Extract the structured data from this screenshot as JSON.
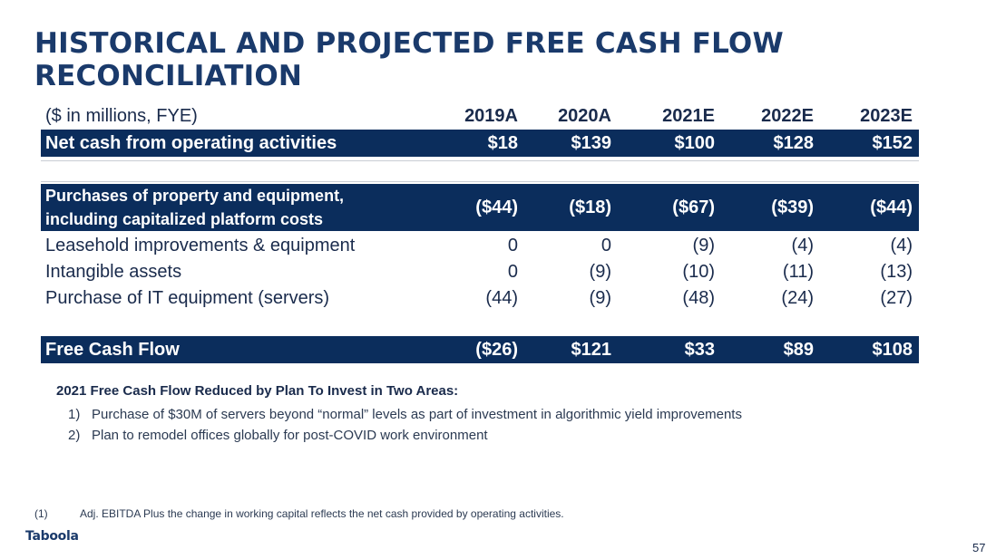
{
  "title": {
    "line1": "HISTORICAL AND PROJECTED FREE CASH FLOW",
    "line2": "RECONCILIATION"
  },
  "table": {
    "units_label": "($ in millions, FYE)",
    "columns": [
      "2019A",
      "2020A",
      "2021E",
      "2022E",
      "2023E"
    ],
    "rows": [
      {
        "label": "Net cash from operating activities",
        "values": [
          "$18",
          "$139",
          "$100",
          "$128",
          "$152"
        ]
      },
      {
        "label": "Purchases of property and equipment, including capitalized platform costs",
        "values": [
          "($44)",
          "($18)",
          "($67)",
          "($39)",
          "($44)"
        ]
      },
      {
        "label": "Leasehold improvements & equipment",
        "values": [
          "0",
          "0",
          "(9)",
          "(4)",
          "(4)"
        ]
      },
      {
        "label": "Intangible assets",
        "values": [
          "0",
          "(9)",
          "(10)",
          "(11)",
          "(13)"
        ]
      },
      {
        "label": "Purchase of IT equipment (servers)",
        "values": [
          "(44)",
          "(9)",
          "(48)",
          "(24)",
          "(27)"
        ]
      },
      {
        "label": "Free Cash Flow",
        "values": [
          "($26)",
          "$121",
          "$33",
          "$89",
          "$108"
        ]
      }
    ]
  },
  "notes": {
    "heading": "2021 Free Cash Flow Reduced by Plan To Invest in Two Areas:",
    "items": [
      {
        "num": "1)",
        "text": "Purchase of $30M of servers beyond “normal” levels as part of investment in algorithmic yield improvements"
      },
      {
        "num": "2)",
        "text": "Plan to remodel offices globally for post-COVID work environment"
      }
    ]
  },
  "footnote": {
    "num": "(1)",
    "text": "Adj. EBITDA Plus the change in working capital reflects the net cash provided by operating activities."
  },
  "brand": {
    "logo_text": "Taboola"
  },
  "page_number": "57",
  "colors": {
    "band": "#0b2d5c",
    "title": "#1a3a6b"
  }
}
